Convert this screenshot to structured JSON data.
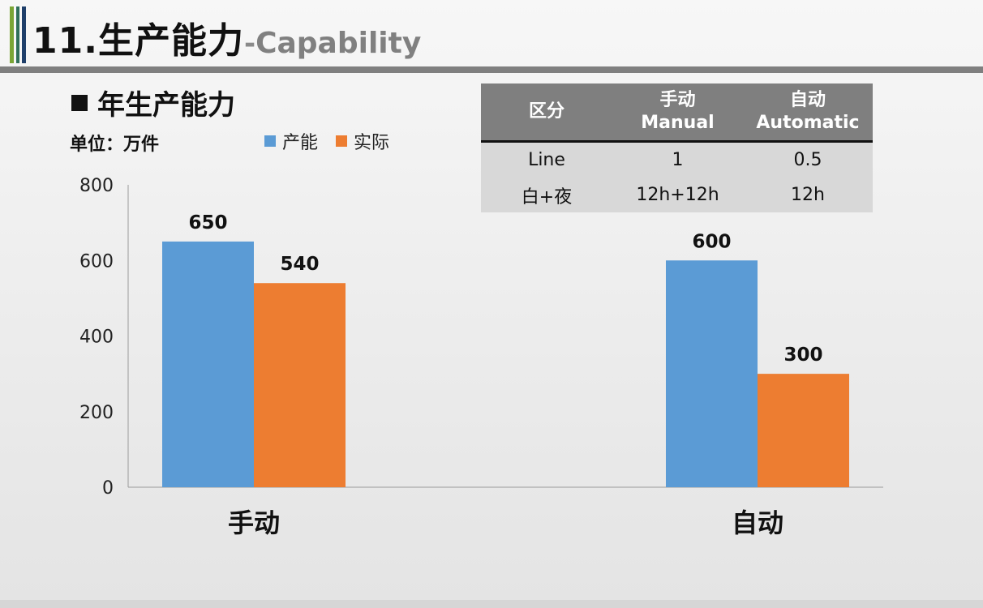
{
  "header": {
    "title": "11.生产能力",
    "dash": "-",
    "subtitle": "Capability",
    "accent_colors": [
      "#7aa535",
      "#2f6f5a",
      "#1f3f6a"
    ]
  },
  "section": {
    "title": "年生产能力",
    "unit": "单位：万件"
  },
  "table": {
    "headers": [
      {
        "zh": "区分",
        "en": ""
      },
      {
        "zh": "手动",
        "en": "Manual"
      },
      {
        "zh": "自动",
        "en": "Automatic"
      }
    ],
    "rows": [
      [
        "Line",
        "1",
        "0.5"
      ],
      [
        "白+夜",
        "12h+12h",
        "12h"
      ]
    ]
  },
  "chart_data": {
    "type": "bar",
    "categories": [
      "手动",
      "自动"
    ],
    "series": [
      {
        "name": "产能",
        "values": [
          650,
          600
        ],
        "color": "#5b9bd5"
      },
      {
        "name": "实际",
        "values": [
          540,
          300
        ],
        "color": "#ed7d31"
      }
    ],
    "ylim": [
      0,
      800
    ],
    "yticks": [
      0,
      200,
      400,
      600,
      800
    ],
    "data_labels": true,
    "grid": false,
    "legend": "top"
  }
}
